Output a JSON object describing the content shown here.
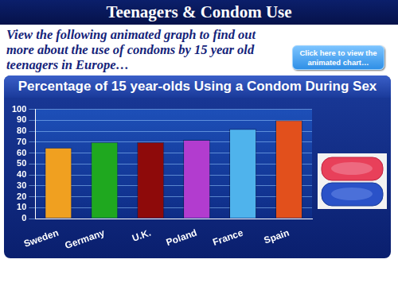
{
  "page": {
    "title": "Teenagers & Condom Use",
    "intro": "View the following animated graph to find out more about the use of condoms by 15 year old teenagers in Europe…",
    "button": "Click here to view the animated chart…"
  },
  "chart_data": {
    "type": "bar",
    "title": "Percentage of 15 year-olds Using a Condom During Sex",
    "categories": [
      "Sweden",
      "Germany",
      "U.K.",
      "Poland",
      "France",
      "Spain"
    ],
    "values": [
      65,
      70,
      70,
      72,
      82,
      90
    ],
    "colors": [
      "#f0a020",
      "#1fa81f",
      "#8e0a0a",
      "#b23ccf",
      "#4fb3ec",
      "#e2501c"
    ],
    "ylim": [
      0,
      100
    ],
    "yticks": [
      0,
      10,
      20,
      30,
      40,
      50,
      60,
      70,
      80,
      90,
      100
    ],
    "grid": true
  }
}
